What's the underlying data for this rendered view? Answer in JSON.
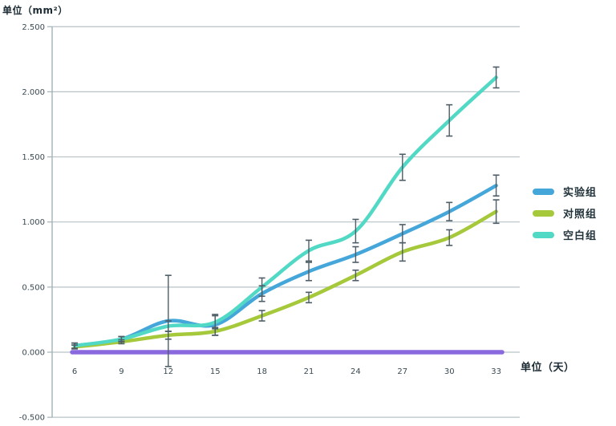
{
  "y_axis_title": "单位（mm²）",
  "x_axis_title": "单位（天）",
  "colors": {
    "experimental_blue": "#45A6DA",
    "control_green": "#A6C93C",
    "blank_cyan": "#52D9C5",
    "baseline_purple": "#8A69DF",
    "gridline": "#b7c3c7",
    "axis_line": "#a3b2b7",
    "error_bar": "#4e5d66",
    "tick_text": "#3a4a52",
    "background": "#ffffff"
  },
  "chart_data": {
    "type": "line",
    "x": [
      6,
      9,
      12,
      15,
      18,
      21,
      24,
      27,
      30,
      33
    ],
    "x_tick_labels": [
      "6",
      "9",
      "12",
      "15",
      "18",
      "21",
      "24",
      "27",
      "30",
      "33"
    ],
    "y_ticks": [
      2.5,
      2.0,
      1.5,
      1.0,
      0.5,
      0.0,
      -0.5
    ],
    "y_tick_labels": [
      "2.500",
      "2.000",
      "1.500",
      "1.000",
      "0.500",
      "0.000",
      "-0.500"
    ],
    "ylim": [
      -0.5,
      2.5
    ],
    "grid": true,
    "legend_position": "right",
    "error_bars": true,
    "series": [
      {
        "name": "实验组",
        "color": "#45A6DA",
        "in_legend": true,
        "values": [
          0.05,
          0.1,
          0.24,
          0.21,
          0.45,
          0.62,
          0.75,
          0.91,
          1.08,
          1.28
        ],
        "errors": [
          0.02,
          0.02,
          0.35,
          0.08,
          0.06,
          0.07,
          0.06,
          0.07,
          0.07,
          0.08
        ]
      },
      {
        "name": "对照组",
        "color": "#A6C93C",
        "in_legend": true,
        "values": [
          0.04,
          0.08,
          0.13,
          0.16,
          0.28,
          0.42,
          0.59,
          0.77,
          0.88,
          1.08
        ],
        "errors": [
          0.015,
          0.015,
          0.03,
          0.03,
          0.04,
          0.04,
          0.04,
          0.07,
          0.06,
          0.09
        ]
      },
      {
        "name": "空白组",
        "color": "#52D9C5",
        "in_legend": true,
        "values": [
          0.05,
          0.1,
          0.2,
          0.23,
          0.5,
          0.78,
          0.93,
          1.42,
          1.78,
          2.11
        ],
        "errors": [
          0.02,
          0.02,
          0.04,
          0.05,
          0.07,
          0.08,
          0.09,
          0.1,
          0.12,
          0.08
        ]
      },
      {
        "name": "",
        "color": "#8A69DF",
        "in_legend": false,
        "values": [
          0,
          0,
          0,
          0,
          0,
          0,
          0,
          0,
          0,
          0
        ],
        "errors": [
          0,
          0,
          0,
          0,
          0,
          0,
          0,
          0,
          0,
          0
        ]
      }
    ]
  }
}
